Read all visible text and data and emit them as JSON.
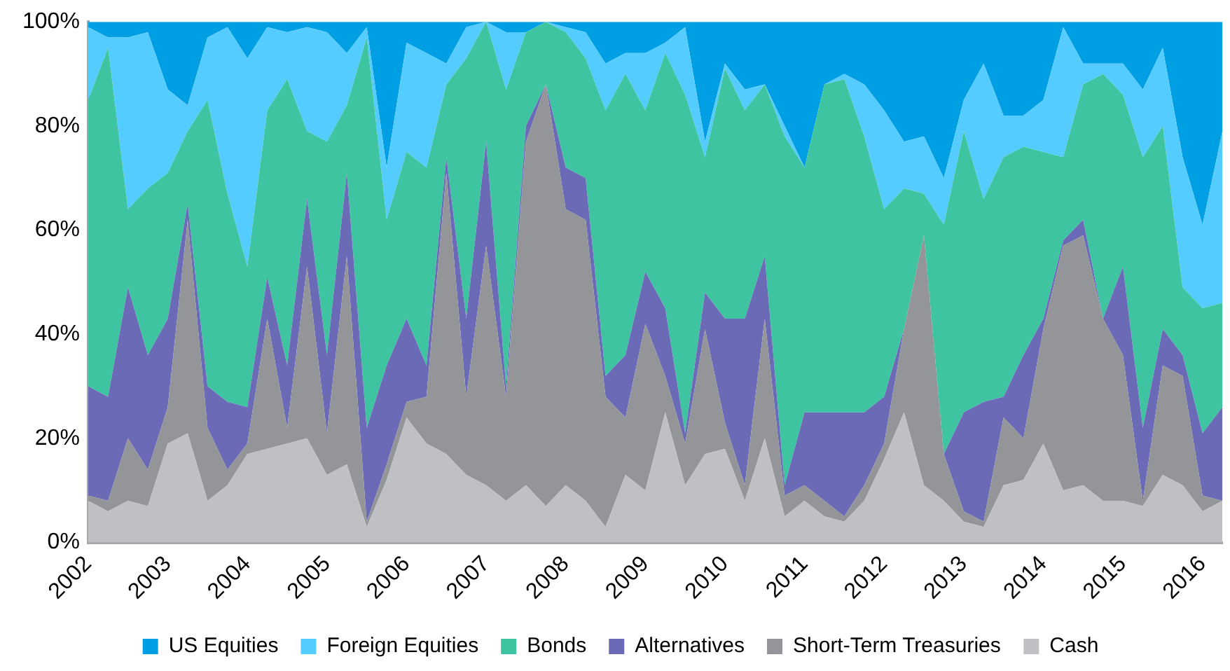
{
  "chart_data": {
    "type": "area",
    "stacked": true,
    "marker": "none",
    "legend": "bottom",
    "grid": false,
    "x": [
      2002,
      2002.25,
      2002.5,
      2002.75,
      2003,
      2003.25,
      2003.5,
      2003.75,
      2004,
      2004.25,
      2004.5,
      2004.75,
      2005,
      2005.25,
      2005.5,
      2005.75,
      2006,
      2006.25,
      2006.5,
      2006.75,
      2007,
      2007.25,
      2007.5,
      2007.75,
      2008,
      2008.25,
      2008.5,
      2008.75,
      2009,
      2009.25,
      2009.5,
      2009.75,
      2010,
      2010.25,
      2010.5,
      2010.75,
      2011,
      2011.25,
      2011.5,
      2011.75,
      2012,
      2012.25,
      2012.5,
      2012.75,
      2013,
      2013.25,
      2013.5,
      2013.75,
      2014,
      2014.25,
      2014.5,
      2014.75,
      2015,
      2015.25,
      2015.5,
      2015.75,
      2016,
      2016.25
    ],
    "xlim": [
      2002,
      2016.25
    ],
    "xticks": [
      2002,
      2003,
      2004,
      2005,
      2006,
      2007,
      2008,
      2009,
      2010,
      2011,
      2012,
      2013,
      2014,
      2015,
      2016
    ],
    "ylim": [
      0,
      100
    ],
    "yticks": [
      {
        "value": 0,
        "label": "0%"
      },
      {
        "value": 20,
        "label": "20%"
      },
      {
        "value": 40,
        "label": "40%"
      },
      {
        "value": 60,
        "label": "60%"
      },
      {
        "value": 80,
        "label": "80%"
      },
      {
        "value": 100,
        "label": "100%"
      }
    ],
    "series": [
      {
        "name": "Cash",
        "color": "#bfc0c4",
        "values": [
          8,
          6,
          8,
          7,
          19,
          21,
          8,
          11,
          17,
          18,
          19,
          20,
          13,
          15,
          3,
          12,
          24,
          19,
          17,
          13,
          11,
          8,
          11,
          7,
          11,
          8,
          3,
          13,
          10,
          25,
          11,
          17,
          18,
          8,
          20,
          5,
          8,
          5,
          4,
          8,
          16,
          25,
          11,
          8,
          4,
          3,
          11,
          12,
          19,
          10,
          11,
          8,
          8,
          7,
          13,
          11,
          6,
          8
        ]
      },
      {
        "name": "Short-Term Treasuries",
        "color": "#939598",
        "values": [
          1,
          2,
          12,
          7,
          7,
          41,
          14,
          3,
          2,
          25,
          3,
          33,
          8,
          40,
          1,
          3,
          3,
          9,
          54,
          15,
          46,
          20,
          66,
          81,
          53,
          54,
          25,
          11,
          32,
          7,
          8,
          24,
          5,
          3,
          23,
          4,
          3,
          3,
          1,
          3,
          3,
          16,
          48,
          9,
          2,
          1,
          13,
          8,
          22,
          47,
          48,
          35,
          28,
          1,
          21,
          21,
          3,
          0
        ]
      },
      {
        "name": "Alternatives",
        "color": "#6a6ab6",
        "values": [
          21,
          20,
          29,
          22,
          17,
          3,
          8,
          13,
          7,
          8,
          12,
          13,
          15,
          16,
          18,
          19,
          16,
          6,
          3,
          15,
          20,
          2,
          3,
          0,
          8,
          8,
          4,
          12,
          10,
          13,
          2,
          7,
          20,
          32,
          12,
          2,
          14,
          17,
          20,
          14,
          9,
          0,
          0,
          0,
          19,
          23,
          4,
          16,
          2,
          1,
          3,
          0,
          17,
          14,
          7,
          4,
          12,
          18
        ]
      },
      {
        "name": "Bonds",
        "color": "#3ec4a0",
        "values": [
          55,
          67,
          15,
          32,
          28,
          14,
          55,
          40,
          27,
          32,
          55,
          13,
          41,
          13,
          75,
          28,
          32,
          38,
          14,
          50,
          23,
          57,
          18,
          12,
          26,
          23,
          51,
          54,
          31,
          49,
          65,
          26,
          48,
          40,
          33,
          67,
          47,
          63,
          64,
          53,
          36,
          27,
          8,
          44,
          54,
          39,
          46,
          40,
          32,
          16,
          26,
          47,
          33,
          52,
          39,
          13,
          24,
          20
        ]
      },
      {
        "name": "Foreign Equities",
        "color": "#55ccff",
        "values": [
          14,
          2,
          33,
          30,
          16,
          5,
          12,
          32,
          40,
          16,
          9,
          20,
          21,
          10,
          2,
          10,
          21,
          22,
          4,
          6,
          0,
          11,
          0,
          0,
          1,
          5,
          9,
          4,
          11,
          2,
          13,
          3,
          1,
          4,
          0,
          2,
          0,
          0,
          1,
          10,
          19,
          9,
          11,
          9,
          6,
          26,
          8,
          6,
          10,
          25,
          4,
          2,
          6,
          13,
          15,
          25,
          16,
          33
        ]
      },
      {
        "name": "US Equities",
        "color": "#009fe3",
        "values": [
          1,
          3,
          3,
          2,
          13,
          16,
          3,
          1,
          7,
          1,
          2,
          1,
          2,
          6,
          1,
          28,
          4,
          6,
          8,
          1,
          0,
          2,
          2,
          0,
          1,
          2,
          8,
          6,
          6,
          4,
          1,
          23,
          8,
          13,
          12,
          20,
          28,
          12,
          10,
          12,
          17,
          23,
          22,
          30,
          15,
          8,
          18,
          18,
          15,
          1,
          8,
          8,
          8,
          13,
          5,
          26,
          39,
          21
        ]
      }
    ]
  }
}
